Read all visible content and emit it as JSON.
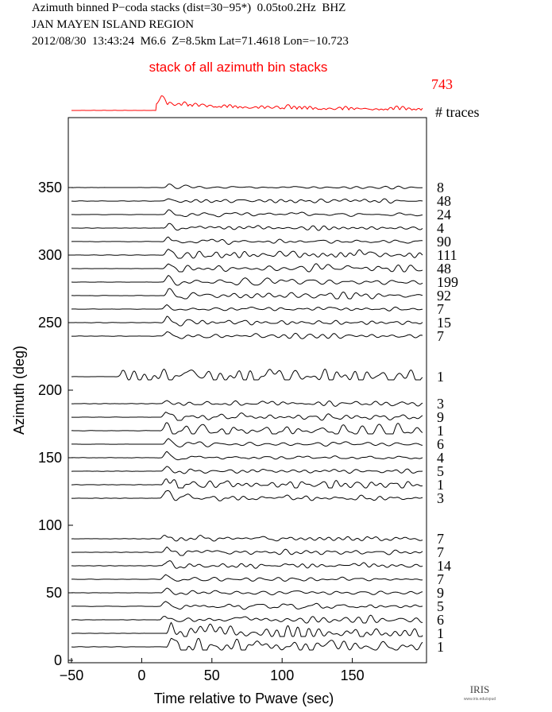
{
  "header": {
    "line1": "Azimuth binned P−coda stacks (dist=30−95*)  0.05to0.2Hz  BHZ",
    "line2": "JAN MAYEN ISLAND REGION",
    "line3": "2012/08/30  13:43:24  M6.6  Z=8.5km Lat=71.4618 Lon=−10.723"
  },
  "logo": {
    "text": "IRIS",
    "subtext": "www.iris.edu/spud"
  },
  "chart_data": {
    "type": "line",
    "title": "Azimuth binned P−coda stacks (dist=30−95*)  0.05to0.2Hz  BHZ",
    "xlabel": "Time relative to Pwave (sec)",
    "ylabel": "Azimuth (deg)",
    "xlim": [
      -50,
      200
    ],
    "ylim": [
      0,
      390
    ],
    "xticks": [
      -50,
      0,
      50,
      100,
      150
    ],
    "yticks": [
      0,
      50,
      100,
      150,
      200,
      250,
      300,
      350
    ],
    "stack_label": "stack of all azimuth bin stacks",
    "stack_count": "743",
    "traces_header": "# traces",
    "colors": {
      "stack": "#ff0000",
      "traces": "#000000"
    },
    "traces": [
      {
        "azimuth": 10,
        "count": "1",
        "onset": 17,
        "amp": 9,
        "noise": 0.55
      },
      {
        "azimuth": 20,
        "count": "1",
        "onset": 17,
        "amp": 10,
        "noise": 0.5
      },
      {
        "azimuth": 30,
        "count": "6",
        "onset": 13,
        "amp": 9,
        "noise": 0.3
      },
      {
        "azimuth": 40,
        "count": "5",
        "onset": 13,
        "amp": 8,
        "noise": 0.25
      },
      {
        "azimuth": 50,
        "count": "9",
        "onset": 14,
        "amp": 8,
        "noise": 0.25
      },
      {
        "azimuth": 60,
        "count": "7",
        "onset": 13,
        "amp": 7,
        "noise": 0.2
      },
      {
        "azimuth": 70,
        "count": "14",
        "onset": 14,
        "amp": 8,
        "noise": 0.2
      },
      {
        "azimuth": 80,
        "count": "7",
        "onset": 14,
        "amp": 8,
        "noise": 0.25
      },
      {
        "azimuth": 90,
        "count": "7",
        "onset": 13,
        "amp": 7,
        "noise": 0.25
      },
      {
        "azimuth": 120,
        "count": "3",
        "onset": 13,
        "amp": 14,
        "noise": 0.15
      },
      {
        "azimuth": 130,
        "count": "1",
        "onset": 14,
        "amp": 13,
        "noise": 0.25
      },
      {
        "azimuth": 140,
        "count": "5",
        "onset": 14,
        "amp": 9,
        "noise": 0.15
      },
      {
        "azimuth": 150,
        "count": "4",
        "onset": 14,
        "amp": 9,
        "noise": 0.15
      },
      {
        "azimuth": 160,
        "count": "6",
        "onset": 15,
        "amp": 8,
        "noise": 0.2
      },
      {
        "azimuth": 170,
        "count": "1",
        "onset": 13,
        "amp": 10,
        "noise": 0.5
      },
      {
        "azimuth": 180,
        "count": "9",
        "onset": 13,
        "amp": 9,
        "noise": 0.3
      },
      {
        "azimuth": 190,
        "count": "3",
        "onset": 14,
        "amp": 7,
        "noise": 0.25
      },
      {
        "azimuth": 210,
        "count": "1",
        "onset": -18,
        "amp": 9,
        "noise": 0.6
      },
      {
        "azimuth": 240,
        "count": "7",
        "onset": 14,
        "amp": 9,
        "noise": 0.2
      },
      {
        "azimuth": 250,
        "count": "15",
        "onset": 14,
        "amp": 8,
        "noise": 0.2
      },
      {
        "azimuth": 260,
        "count": "7",
        "onset": 14,
        "amp": 7,
        "noise": 0.2
      },
      {
        "azimuth": 270,
        "count": "92",
        "onset": 15,
        "amp": 9,
        "noise": 0.25
      },
      {
        "azimuth": 280,
        "count": "199",
        "onset": 15,
        "amp": 9,
        "noise": 0.25
      },
      {
        "azimuth": 290,
        "count": "48",
        "onset": 15,
        "amp": 9,
        "noise": 0.25
      },
      {
        "azimuth": 300,
        "count": "111",
        "onset": 15,
        "amp": 9,
        "noise": 0.25
      },
      {
        "azimuth": 310,
        "count": "90",
        "onset": 15,
        "amp": 8,
        "noise": 0.2
      },
      {
        "azimuth": 320,
        "count": "4",
        "onset": 15,
        "amp": 6,
        "noise": 0.3
      },
      {
        "azimuth": 330,
        "count": "24",
        "onset": 15,
        "amp": 6,
        "noise": 0.25
      },
      {
        "azimuth": 340,
        "count": "48",
        "onset": 15,
        "amp": 5,
        "noise": 0.25
      },
      {
        "azimuth": 350,
        "count": "8",
        "onset": 15,
        "amp": 4,
        "noise": 0.3
      }
    ]
  }
}
